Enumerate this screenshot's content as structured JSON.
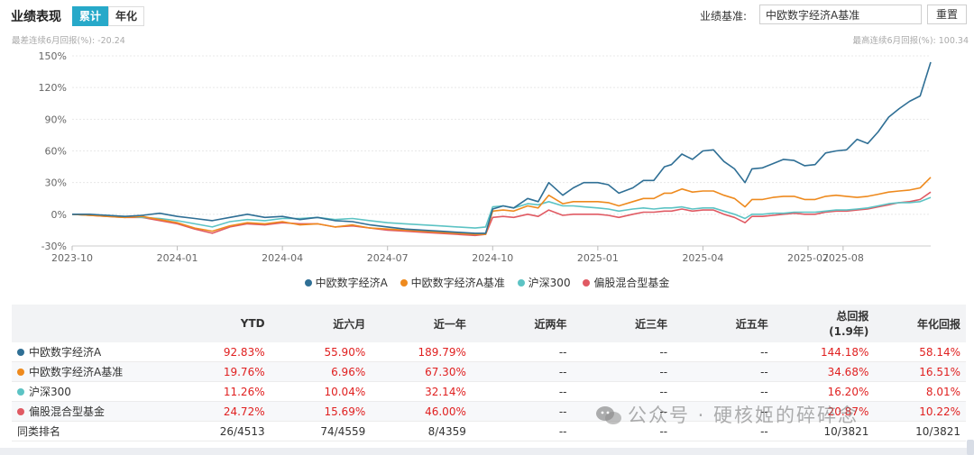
{
  "header": {
    "title": "业绩表现",
    "tabs": [
      {
        "label": "累计",
        "active": true
      },
      {
        "label": "年化",
        "active": false
      }
    ],
    "benchmark_label": "业绩基准:",
    "benchmark_value": "中欧数字经济A基准",
    "reset_label": "重置",
    "note_left": "最差连续6月回报(%): -20.24",
    "note_right": "最高连续6月回报(%): 100.34"
  },
  "chart_data": {
    "type": "line",
    "xlabel": "",
    "ylabel": "",
    "ylim": [
      -30,
      150
    ],
    "y_ticks": [
      "150%",
      "120%",
      "90%",
      "60%",
      "30%",
      "0%",
      "-30%"
    ],
    "y_tick_values": [
      150,
      120,
      90,
      60,
      30,
      0,
      -30
    ],
    "x_ticks": [
      "2023-10",
      "2024-01",
      "2024-04",
      "2024-07",
      "2024-10",
      "2025-01",
      "2025-04",
      "2025-07",
      "2025-08"
    ],
    "x_tick_months": [
      0,
      3,
      6,
      9,
      12,
      15,
      18,
      21,
      22
    ],
    "grid": true,
    "legend_position": "bottom",
    "series": [
      {
        "name": "中欧数字经济A",
        "color": "#2f6f95",
        "values": [
          [
            0,
            0
          ],
          [
            0.5,
            0
          ],
          [
            1,
            -1
          ],
          [
            1.5,
            -2
          ],
          [
            2,
            -1
          ],
          [
            2.5,
            1
          ],
          [
            3,
            -2
          ],
          [
            3.5,
            -4
          ],
          [
            4,
            -6
          ],
          [
            4.5,
            -3
          ],
          [
            5,
            0
          ],
          [
            5.5,
            -3
          ],
          [
            6,
            -2
          ],
          [
            6.5,
            -5
          ],
          [
            7,
            -3
          ],
          [
            7.5,
            -6
          ],
          [
            8,
            -7
          ],
          [
            8.5,
            -10
          ],
          [
            9,
            -12
          ],
          [
            9.5,
            -14
          ],
          [
            10,
            -15
          ],
          [
            10.5,
            -16
          ],
          [
            11,
            -17
          ],
          [
            11.5,
            -18
          ],
          [
            11.8,
            -18
          ],
          [
            12,
            5
          ],
          [
            12.3,
            8
          ],
          [
            12.6,
            6
          ],
          [
            13,
            15
          ],
          [
            13.3,
            12
          ],
          [
            13.6,
            30
          ],
          [
            14,
            18
          ],
          [
            14.3,
            25
          ],
          [
            14.6,
            30
          ],
          [
            15,
            30
          ],
          [
            15.3,
            28
          ],
          [
            15.6,
            20
          ],
          [
            16,
            25
          ],
          [
            16.3,
            32
          ],
          [
            16.6,
            32
          ],
          [
            16.9,
            45
          ],
          [
            17.1,
            47
          ],
          [
            17.4,
            57
          ],
          [
            17.7,
            52
          ],
          [
            18,
            60
          ],
          [
            18.3,
            61
          ],
          [
            18.6,
            50
          ],
          [
            18.9,
            43
          ],
          [
            19.2,
            30
          ],
          [
            19.4,
            43
          ],
          [
            19.7,
            44
          ],
          [
            20,
            48
          ],
          [
            20.3,
            52
          ],
          [
            20.6,
            51
          ],
          [
            20.9,
            46
          ],
          [
            21.2,
            47
          ],
          [
            21.5,
            58
          ],
          [
            21.8,
            60
          ],
          [
            22.1,
            61
          ],
          [
            22.4,
            71
          ],
          [
            22.7,
            67
          ],
          [
            23,
            78
          ],
          [
            23.3,
            92
          ],
          [
            23.6,
            100
          ],
          [
            23.9,
            107
          ],
          [
            24.2,
            112
          ],
          [
            24.5,
            144
          ]
        ]
      },
      {
        "name": "中欧数字经济A基准",
        "color": "#ee8a1e",
        "values": [
          [
            0,
            0
          ],
          [
            0.5,
            -1
          ],
          [
            1,
            -2
          ],
          [
            1.5,
            -3
          ],
          [
            2,
            -2
          ],
          [
            2.5,
            -5
          ],
          [
            3,
            -8
          ],
          [
            3.5,
            -13
          ],
          [
            4,
            -16
          ],
          [
            4.5,
            -11
          ],
          [
            5,
            -8
          ],
          [
            5.5,
            -9
          ],
          [
            6,
            -7
          ],
          [
            6.5,
            -10
          ],
          [
            7,
            -9
          ],
          [
            7.5,
            -12
          ],
          [
            8,
            -10
          ],
          [
            8.5,
            -13
          ],
          [
            9,
            -14
          ],
          [
            9.5,
            -15
          ],
          [
            10,
            -16
          ],
          [
            10.5,
            -17
          ],
          [
            11,
            -18
          ],
          [
            11.5,
            -19
          ],
          [
            11.8,
            -19
          ],
          [
            12,
            3
          ],
          [
            12.3,
            4
          ],
          [
            12.6,
            3
          ],
          [
            13,
            8
          ],
          [
            13.3,
            6
          ],
          [
            13.6,
            18
          ],
          [
            14,
            10
          ],
          [
            14.3,
            12
          ],
          [
            14.6,
            12
          ],
          [
            15,
            12
          ],
          [
            15.3,
            11
          ],
          [
            15.6,
            8
          ],
          [
            16,
            12
          ],
          [
            16.3,
            15
          ],
          [
            16.6,
            15
          ],
          [
            16.9,
            20
          ],
          [
            17.1,
            20
          ],
          [
            17.4,
            24
          ],
          [
            17.7,
            21
          ],
          [
            18,
            22
          ],
          [
            18.3,
            22
          ],
          [
            18.6,
            18
          ],
          [
            18.9,
            15
          ],
          [
            19.2,
            7
          ],
          [
            19.4,
            14
          ],
          [
            19.7,
            14
          ],
          [
            20,
            16
          ],
          [
            20.3,
            17
          ],
          [
            20.6,
            17
          ],
          [
            20.9,
            14
          ],
          [
            21.2,
            14
          ],
          [
            21.5,
            17
          ],
          [
            21.8,
            18
          ],
          [
            22.1,
            17
          ],
          [
            22.4,
            16
          ],
          [
            22.7,
            17
          ],
          [
            23,
            19
          ],
          [
            23.3,
            21
          ],
          [
            23.6,
            22
          ],
          [
            23.9,
            23
          ],
          [
            24.2,
            25
          ],
          [
            24.5,
            35
          ]
        ]
      },
      {
        "name": "沪深300",
        "color": "#5cc3c4",
        "values": [
          [
            0,
            0
          ],
          [
            0.5,
            -1
          ],
          [
            1,
            -1
          ],
          [
            1.5,
            -2
          ],
          [
            2,
            -3
          ],
          [
            2.5,
            -4
          ],
          [
            3,
            -6
          ],
          [
            3.5,
            -9
          ],
          [
            4,
            -12
          ],
          [
            4.5,
            -7
          ],
          [
            5,
            -5
          ],
          [
            5.5,
            -6
          ],
          [
            6,
            -4
          ],
          [
            6.5,
            -4
          ],
          [
            7,
            -3
          ],
          [
            7.5,
            -5
          ],
          [
            8,
            -4
          ],
          [
            8.5,
            -6
          ],
          [
            9,
            -8
          ],
          [
            9.5,
            -9
          ],
          [
            10,
            -10
          ],
          [
            10.5,
            -11
          ],
          [
            11,
            -12
          ],
          [
            11.5,
            -13
          ],
          [
            11.8,
            -12
          ],
          [
            12,
            7
          ],
          [
            12.3,
            8
          ],
          [
            12.6,
            6
          ],
          [
            13,
            10
          ],
          [
            13.3,
            9
          ],
          [
            13.6,
            12
          ],
          [
            14,
            8
          ],
          [
            14.3,
            8
          ],
          [
            14.6,
            7
          ],
          [
            15,
            6
          ],
          [
            15.3,
            5
          ],
          [
            15.6,
            3
          ],
          [
            16,
            5
          ],
          [
            16.3,
            6
          ],
          [
            16.6,
            5
          ],
          [
            16.9,
            6
          ],
          [
            17.1,
            6
          ],
          [
            17.4,
            7
          ],
          [
            17.7,
            5
          ],
          [
            18,
            6
          ],
          [
            18.3,
            6
          ],
          [
            18.6,
            3
          ],
          [
            18.9,
            0
          ],
          [
            19.2,
            -4
          ],
          [
            19.4,
            0
          ],
          [
            19.7,
            0
          ],
          [
            20,
            1
          ],
          [
            20.3,
            1
          ],
          [
            20.6,
            2
          ],
          [
            20.9,
            2
          ],
          [
            21.2,
            2
          ],
          [
            21.5,
            3
          ],
          [
            21.8,
            4
          ],
          [
            22.1,
            4
          ],
          [
            22.4,
            5
          ],
          [
            22.7,
            6
          ],
          [
            23,
            8
          ],
          [
            23.3,
            10
          ],
          [
            23.6,
            11
          ],
          [
            23.9,
            11
          ],
          [
            24.2,
            12
          ],
          [
            24.5,
            16
          ]
        ]
      },
      {
        "name": "偏股混合型基金",
        "color": "#e05a63",
        "values": [
          [
            0,
            0
          ],
          [
            0.5,
            -1
          ],
          [
            1,
            -2
          ],
          [
            1.5,
            -3
          ],
          [
            2,
            -3
          ],
          [
            2.5,
            -6
          ],
          [
            3,
            -9
          ],
          [
            3.5,
            -14
          ],
          [
            4,
            -18
          ],
          [
            4.5,
            -12
          ],
          [
            5,
            -9
          ],
          [
            5.5,
            -10
          ],
          [
            6,
            -8
          ],
          [
            6.5,
            -9
          ],
          [
            7,
            -9
          ],
          [
            7.5,
            -12
          ],
          [
            8,
            -11
          ],
          [
            8.5,
            -13
          ],
          [
            9,
            -15
          ],
          [
            9.5,
            -16
          ],
          [
            10,
            -17
          ],
          [
            10.5,
            -18
          ],
          [
            11,
            -19
          ],
          [
            11.5,
            -20
          ],
          [
            11.8,
            -19
          ],
          [
            12,
            -3
          ],
          [
            12.3,
            -2
          ],
          [
            12.6,
            -3
          ],
          [
            13,
            0
          ],
          [
            13.3,
            -2
          ],
          [
            13.6,
            4
          ],
          [
            14,
            -1
          ],
          [
            14.3,
            0
          ],
          [
            14.6,
            0
          ],
          [
            15,
            0
          ],
          [
            15.3,
            -1
          ],
          [
            15.6,
            -3
          ],
          [
            16,
            0
          ],
          [
            16.3,
            2
          ],
          [
            16.6,
            2
          ],
          [
            16.9,
            3
          ],
          [
            17.1,
            3
          ],
          [
            17.4,
            5
          ],
          [
            17.7,
            3
          ],
          [
            18,
            4
          ],
          [
            18.3,
            4
          ],
          [
            18.6,
            0
          ],
          [
            18.9,
            -3
          ],
          [
            19.2,
            -8
          ],
          [
            19.4,
            -2
          ],
          [
            19.7,
            -2
          ],
          [
            20,
            -1
          ],
          [
            20.3,
            0
          ],
          [
            20.6,
            1
          ],
          [
            20.9,
            0
          ],
          [
            21.2,
            0
          ],
          [
            21.5,
            2
          ],
          [
            21.8,
            3
          ],
          [
            22.1,
            3
          ],
          [
            22.4,
            4
          ],
          [
            22.7,
            5
          ],
          [
            23,
            7
          ],
          [
            23.3,
            9
          ],
          [
            23.6,
            11
          ],
          [
            23.9,
            12
          ],
          [
            24.2,
            14
          ],
          [
            24.5,
            21
          ]
        ]
      }
    ]
  },
  "table": {
    "columns": [
      "",
      "YTD",
      "近六月",
      "近一年",
      "近两年",
      "近三年",
      "近五年",
      "总回报\n(1.9年)",
      "年化回报"
    ],
    "col_total_line1": "总回报",
    "col_total_line2": "(1.9年)",
    "rows": [
      {
        "name": "中欧数字经济A",
        "color": "#2f6f95",
        "cells": [
          "92.83%",
          "55.90%",
          "189.79%",
          "--",
          "--",
          "--",
          "144.18%",
          "58.14%"
        ]
      },
      {
        "name": "中欧数字经济A基准",
        "color": "#ee8a1e",
        "cells": [
          "19.76%",
          "6.96%",
          "67.30%",
          "--",
          "--",
          "--",
          "34.68%",
          "16.51%"
        ]
      },
      {
        "name": "沪深300",
        "color": "#5cc3c4",
        "cells": [
          "11.26%",
          "10.04%",
          "32.14%",
          "--",
          "--",
          "--",
          "16.20%",
          "8.01%"
        ]
      },
      {
        "name": "偏股混合型基金",
        "color": "#e05a63",
        "cells": [
          "24.72%",
          "15.69%",
          "46.00%",
          "--",
          "--",
          "--",
          "20.87%",
          "10.22%"
        ]
      },
      {
        "name": "同类排名",
        "color": "",
        "cells": [
          "26/4513",
          "74/4559",
          "8/4359",
          "--",
          "--",
          "--",
          "10/3821",
          "10/3821"
        ]
      }
    ]
  },
  "watermark": "公众号 · 硬核姬的碎碎念"
}
